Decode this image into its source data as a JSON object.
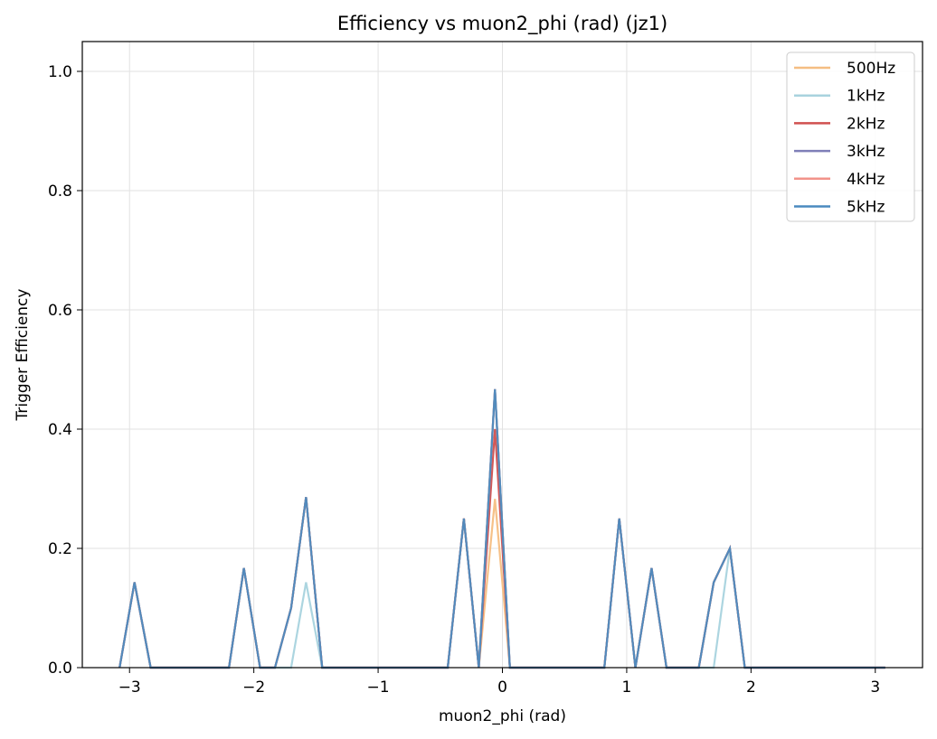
{
  "chart_data": {
    "type": "line",
    "title": "Efficiency vs muon2_phi (rad) (jz1)",
    "xlabel": "muon2_phi (rad)",
    "ylabel": "Trigger Efficiency",
    "xlim": [
      -3.38,
      3.38
    ],
    "ylim": [
      0.0,
      1.05
    ],
    "xticks": [
      -3,
      -2,
      -1,
      0,
      1,
      2,
      3
    ],
    "xtick_labels": [
      "−3",
      "−2",
      "−1",
      "0",
      "1",
      "2",
      "3"
    ],
    "yticks": [
      0.0,
      0.2,
      0.4,
      0.6,
      0.8,
      1.0
    ],
    "ytick_labels": [
      "0.0",
      "0.2",
      "0.4",
      "0.6",
      "0.8",
      "1.0"
    ],
    "grid": true,
    "legend_position": "top-right",
    "x": [
      -3.08,
      -2.96,
      -2.83,
      -2.71,
      -2.58,
      -2.45,
      -2.33,
      -2.2,
      -2.08,
      -1.95,
      -1.83,
      -1.7,
      -1.58,
      -1.45,
      -1.32,
      -1.2,
      -1.07,
      -0.94,
      -0.82,
      -0.69,
      -0.57,
      -0.44,
      -0.31,
      -0.19,
      -0.06,
      0.06,
      0.19,
      0.31,
      0.44,
      0.57,
      0.69,
      0.82,
      0.94,
      1.07,
      1.2,
      1.32,
      1.45,
      1.58,
      1.7,
      1.83,
      1.95,
      2.08,
      2.2,
      2.33,
      2.45,
      2.58,
      2.71,
      2.83,
      2.96,
      3.08
    ],
    "series": [
      {
        "name": "500Hz",
        "color": "#f5be82",
        "values": [
          0,
          0.143,
          0,
          0,
          0,
          0,
          0,
          0,
          0.167,
          0,
          0,
          0.1,
          0.286,
          0,
          0,
          0,
          0,
          0,
          0,
          0,
          0,
          0,
          0.25,
          0,
          0.283,
          0,
          0,
          0,
          0,
          0,
          0,
          0,
          0.25,
          0,
          0.167,
          0,
          0,
          0,
          0.143,
          0.2,
          0,
          0,
          0,
          0,
          0,
          0,
          0,
          0,
          0,
          0
        ]
      },
      {
        "name": "1kHz",
        "color": "#a8d3de",
        "values": [
          0,
          0.143,
          0,
          0,
          0,
          0,
          0,
          0,
          0.167,
          0,
          0,
          0,
          0.143,
          0,
          0,
          0,
          0,
          0,
          0,
          0,
          0,
          0,
          0.25,
          0,
          0.467,
          0,
          0,
          0,
          0,
          0,
          0,
          0,
          0.25,
          0,
          0.167,
          0,
          0,
          0,
          0,
          0.2,
          0,
          0,
          0,
          0,
          0,
          0,
          0,
          0,
          0,
          0
        ]
      },
      {
        "name": "2kHz",
        "color": "#d0504f",
        "values": [
          0,
          0.143,
          0,
          0,
          0,
          0,
          0,
          0,
          0.167,
          0,
          0,
          0.1,
          0.286,
          0,
          0,
          0,
          0,
          0,
          0,
          0,
          0,
          0,
          0.25,
          0,
          0.4,
          0,
          0,
          0,
          0,
          0,
          0,
          0,
          0.25,
          0,
          0.167,
          0,
          0,
          0,
          0.143,
          0.2,
          0,
          0,
          0,
          0,
          0,
          0,
          0,
          0,
          0,
          0
        ]
      },
      {
        "name": "3kHz",
        "color": "#7f7fb8",
        "values": [
          0,
          0.143,
          0,
          0,
          0,
          0,
          0,
          0,
          0.167,
          0,
          0,
          0.1,
          0.286,
          0,
          0,
          0,
          0,
          0,
          0,
          0,
          0,
          0,
          0.25,
          0,
          0.467,
          0,
          0,
          0,
          0,
          0,
          0,
          0,
          0.25,
          0,
          0.167,
          0,
          0,
          0,
          0.143,
          0.2,
          0,
          0,
          0,
          0,
          0,
          0,
          0,
          0,
          0,
          0
        ]
      },
      {
        "name": "4kHz",
        "color": "#f2938a",
        "values": [
          0,
          0.143,
          0,
          0,
          0,
          0,
          0,
          0,
          0.167,
          0,
          0,
          0.1,
          0.286,
          0,
          0,
          0,
          0,
          0,
          0,
          0,
          0,
          0,
          0.25,
          0,
          0.467,
          0,
          0,
          0,
          0,
          0,
          0,
          0,
          0.25,
          0,
          0.167,
          0,
          0,
          0,
          0.143,
          0.2,
          0,
          0,
          0,
          0,
          0,
          0,
          0,
          0,
          0,
          0
        ]
      },
      {
        "name": "5kHz",
        "color": "#4a8abf",
        "values": [
          0,
          0.143,
          0,
          0,
          0,
          0,
          0,
          0,
          0.167,
          0,
          0,
          0.1,
          0.286,
          0,
          0,
          0,
          0,
          0,
          0,
          0,
          0,
          0,
          0.25,
          0,
          0.467,
          0,
          0,
          0,
          0,
          0,
          0,
          0,
          0.25,
          0,
          0.167,
          0,
          0,
          0,
          0.143,
          0.2,
          0,
          0,
          0,
          0,
          0,
          0,
          0,
          0,
          0,
          0
        ]
      }
    ]
  }
}
